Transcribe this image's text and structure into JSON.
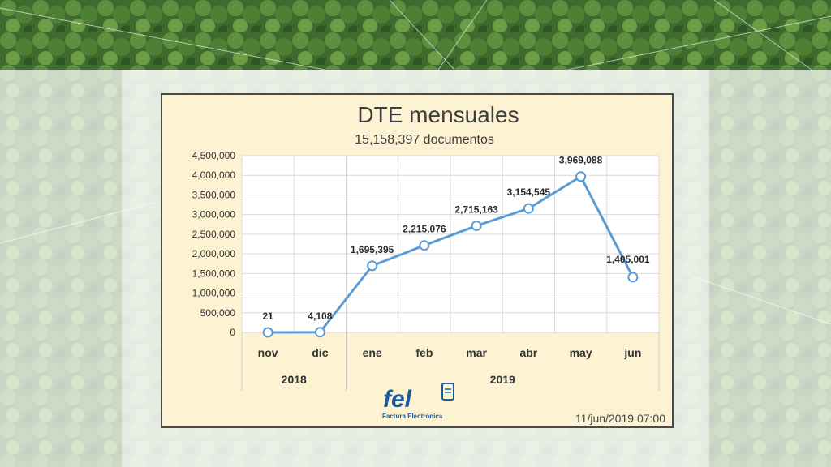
{
  "chart_data": {
    "type": "line",
    "title": "DTE mensuales",
    "subtitle": "15,158,397 documentos",
    "categories": [
      "nov",
      "dic",
      "ene",
      "feb",
      "mar",
      "abr",
      "may",
      "jun"
    ],
    "groups": [
      {
        "label": "2018",
        "span": 2
      },
      {
        "label": "2019",
        "span": 6
      }
    ],
    "values": [
      21,
      4108,
      1695395,
      2215076,
      2715163,
      3154545,
      3969088,
      1405001
    ],
    "data_labels": [
      "21",
      "4,108",
      "1,695,395",
      "2,215,076",
      "2,715,163",
      "3,154,545",
      "3,969,088",
      "1,405,001"
    ],
    "ylim": [
      0,
      4500000
    ],
    "yticks": [
      "0",
      "500,000",
      "1,000,000",
      "1,500,000",
      "2,000,000",
      "2,500,000",
      "3,000,000",
      "3,500,000",
      "4,000,000",
      "4,500,000"
    ],
    "ytick_values": [
      0,
      500000,
      1000000,
      1500000,
      2000000,
      2500000,
      3000000,
      3500000,
      4000000,
      4500000
    ],
    "grid": true,
    "line_color": "#5b9bd5",
    "marker_fill": "#ffffff"
  },
  "logo": {
    "text": "fel",
    "subtitle": "Factura Electrónica"
  },
  "timestamp": "11/jun/2019 07:00"
}
